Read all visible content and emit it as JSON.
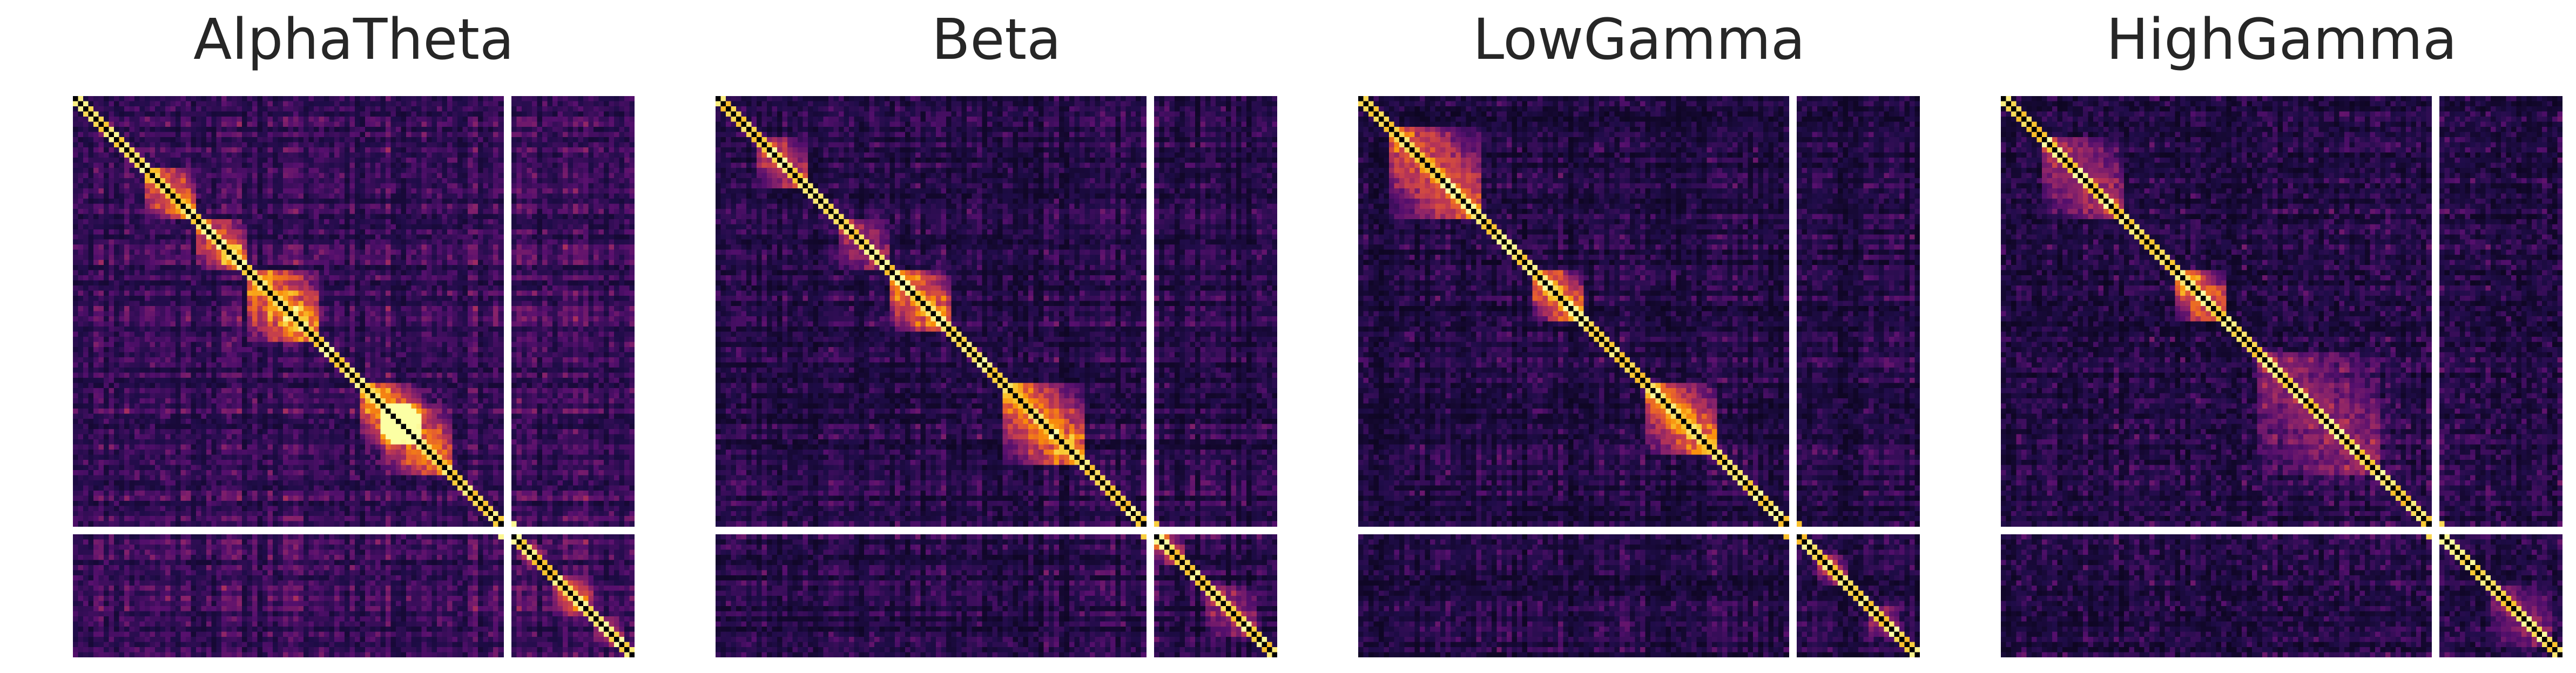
{
  "chart_data": [
    {
      "type": "heatmap",
      "title": "AlphaTheta",
      "colormap": "inferno",
      "seed": 11,
      "n_main": 84,
      "n_side": 24,
      "blocks": [
        [
          14,
          24,
          0.75
        ],
        [
          24,
          34,
          0.7
        ],
        [
          34,
          48,
          0.85
        ],
        [
          56,
          68,
          0.9
        ],
        [
          60,
          74,
          0.75
        ]
      ],
      "side_blocks": [
        [
          2,
          6,
          0.7
        ],
        [
          8,
          16,
          0.6
        ],
        [
          16,
          22,
          0.5
        ]
      ],
      "noise": 0.5,
      "base": 0.35,
      "grid": false,
      "legend": "none"
    },
    {
      "type": "heatmap",
      "title": "Beta",
      "colormap": "inferno",
      "seed": 23,
      "n_main": 84,
      "n_side": 24,
      "blocks": [
        [
          8,
          18,
          0.55
        ],
        [
          24,
          34,
          0.45
        ],
        [
          34,
          46,
          0.85
        ],
        [
          56,
          72,
          0.85
        ]
      ],
      "side_blocks": [
        [
          0,
          6,
          0.6
        ],
        [
          10,
          20,
          0.4
        ]
      ],
      "noise": 0.45,
      "base": 0.25,
      "grid": false,
      "legend": "none"
    },
    {
      "type": "heatmap",
      "title": "LowGamma",
      "colormap": "inferno",
      "seed": 37,
      "n_main": 84,
      "n_side": 24,
      "blocks": [
        [
          6,
          24,
          0.7
        ],
        [
          34,
          44,
          0.9
        ],
        [
          56,
          70,
          0.85
        ]
      ],
      "side_blocks": [
        [
          4,
          10,
          0.6
        ],
        [
          14,
          20,
          0.45
        ]
      ],
      "noise": 0.45,
      "base": 0.22,
      "grid": false,
      "legend": "none"
    },
    {
      "type": "heatmap",
      "title": "HighGamma",
      "colormap": "inferno",
      "seed": 53,
      "n_main": 84,
      "n_side": 24,
      "blocks": [
        [
          8,
          24,
          0.45
        ],
        [
          34,
          44,
          0.85
        ],
        [
          50,
          74,
          0.35
        ]
      ],
      "side_blocks": [
        [
          10,
          22,
          0.35
        ]
      ],
      "noise": 0.55,
      "base": 0.22,
      "grid": false,
      "legend": "none"
    }
  ]
}
